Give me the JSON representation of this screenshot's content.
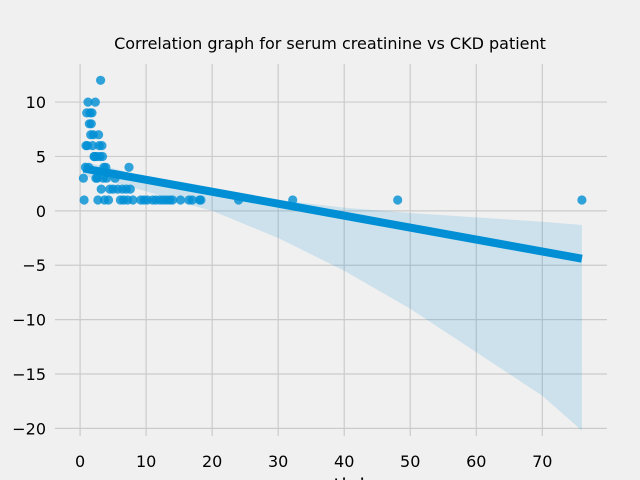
{
  "chart_data": {
    "type": "scatter",
    "title": "Correlation graph for serum creatinine vs CKD patient",
    "xlabel": "creatinine",
    "ylabel": "",
    "xlim": [
      -3.8,
      79.8
    ],
    "ylim": [
      -20.7,
      13.5
    ],
    "x_ticks": [
      0,
      10,
      20,
      30,
      40,
      50,
      60,
      70
    ],
    "y_ticks": [
      10,
      5,
      0,
      -5,
      -10,
      -15,
      -20
    ],
    "x_tick_labels": [
      "0",
      "10",
      "20",
      "30",
      "40",
      "50",
      "60",
      "70"
    ],
    "y_tick_labels": [
      "10",
      "5",
      "0",
      "−5",
      "−10",
      "−15",
      "−20"
    ],
    "grid": true,
    "colors": {
      "background": "#f0f0f0",
      "grid": "#cbcbcb",
      "points": "#008fd5",
      "line": "#008fd5",
      "band": "#008fd5"
    },
    "points": [
      [
        0.5,
        3
      ],
      [
        0.6,
        1
      ],
      [
        0.8,
        4
      ],
      [
        0.9,
        6
      ],
      [
        1.0,
        9
      ],
      [
        1.1,
        6
      ],
      [
        1.2,
        10
      ],
      [
        1.3,
        4
      ],
      [
        1.4,
        8
      ],
      [
        1.5,
        9
      ],
      [
        1.6,
        7
      ],
      [
        1.7,
        8
      ],
      [
        1.8,
        9
      ],
      [
        1.9,
        6
      ],
      [
        2.0,
        7
      ],
      [
        2.1,
        5
      ],
      [
        2.2,
        5
      ],
      [
        2.3,
        10
      ],
      [
        2.4,
        3
      ],
      [
        2.5,
        5
      ],
      [
        2.6,
        3
      ],
      [
        2.7,
        1
      ],
      [
        2.8,
        7
      ],
      [
        2.9,
        6
      ],
      [
        3.0,
        5
      ],
      [
        3.1,
        12
      ],
      [
        3.2,
        2
      ],
      [
        3.3,
        6
      ],
      [
        3.4,
        5
      ],
      [
        3.5,
        3
      ],
      [
        3.6,
        4
      ],
      [
        3.7,
        1
      ],
      [
        3.9,
        4
      ],
      [
        4.0,
        3
      ],
      [
        4.3,
        1
      ],
      [
        4.5,
        2
      ],
      [
        5.0,
        2
      ],
      [
        5.3,
        3
      ],
      [
        5.7,
        2
      ],
      [
        6.1,
        1
      ],
      [
        6.4,
        2
      ],
      [
        6.6,
        1
      ],
      [
        7.0,
        2
      ],
      [
        7.2,
        1
      ],
      [
        7.4,
        4
      ],
      [
        7.6,
        2
      ],
      [
        8.0,
        1
      ],
      [
        9.2,
        1
      ],
      [
        9.7,
        1
      ],
      [
        10.2,
        1
      ],
      [
        11.0,
        1
      ],
      [
        11.5,
        1
      ],
      [
        12.1,
        1
      ],
      [
        12.6,
        1
      ],
      [
        13.1,
        1
      ],
      [
        13.6,
        1
      ],
      [
        14.0,
        1
      ],
      [
        15.2,
        1
      ],
      [
        16.5,
        1
      ],
      [
        17.0,
        1
      ],
      [
        18.1,
        1
      ],
      [
        18.3,
        1
      ],
      [
        24.0,
        1
      ],
      [
        32.2,
        1
      ],
      [
        48.1,
        1
      ],
      [
        76.0,
        1
      ]
    ],
    "regression_line": {
      "x": [
        0.5,
        76.0
      ],
      "y": [
        3.9,
        -4.4
      ]
    },
    "confidence_band": {
      "x": [
        0.5,
        5,
        10,
        15,
        20,
        30,
        40,
        50,
        60,
        70,
        76
      ],
      "upper": [
        4.5,
        3.9,
        3.1,
        2.2,
        1.8,
        1.0,
        0.3,
        -0.2,
        -0.6,
        -1.0,
        -1.3
      ],
      "lower": [
        3.2,
        2.6,
        1.8,
        0.8,
        0.0,
        -2.5,
        -5.5,
        -9.0,
        -13.0,
        -17.0,
        -20.2
      ]
    }
  }
}
